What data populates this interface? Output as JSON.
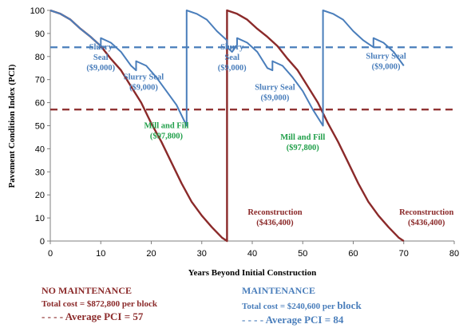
{
  "chart_data": {
    "type": "line",
    "xlabel": "Years Beyond Initial Construction",
    "ylabel": "Pavement Condition Index (PCI)",
    "xlim": [
      0,
      80
    ],
    "ylim": [
      0,
      100
    ],
    "x_ticks": [
      0,
      10,
      20,
      30,
      40,
      50,
      60,
      70,
      80
    ],
    "y_ticks": [
      0,
      10,
      20,
      30,
      40,
      50,
      60,
      70,
      80,
      90,
      100
    ],
    "grid": false,
    "series": [
      {
        "name": "NO MAINTENANCE",
        "color": "#8b2a2a",
        "points": [
          [
            0,
            100
          ],
          [
            2,
            98.5
          ],
          [
            4,
            96
          ],
          [
            6,
            92
          ],
          [
            8,
            88.5
          ],
          [
            10,
            84.5
          ],
          [
            12,
            79
          ],
          [
            14,
            74
          ],
          [
            16,
            67
          ],
          [
            18,
            60
          ],
          [
            20,
            51
          ],
          [
            22,
            43
          ],
          [
            24,
            34
          ],
          [
            26,
            25
          ],
          [
            28,
            17
          ],
          [
            30,
            11
          ],
          [
            32,
            6
          ],
          [
            34,
            1.5
          ],
          [
            35,
            0
          ],
          [
            35,
            100
          ],
          [
            37,
            98.5
          ],
          [
            39,
            96
          ],
          [
            41,
            92
          ],
          [
            43,
            88.5
          ],
          [
            45,
            84.5
          ],
          [
            47,
            79
          ],
          [
            49,
            74
          ],
          [
            51,
            67
          ],
          [
            53,
            60
          ],
          [
            55,
            51
          ],
          [
            57,
            43
          ],
          [
            59,
            34
          ],
          [
            61,
            25
          ],
          [
            63,
            17
          ],
          [
            65,
            11
          ],
          [
            67,
            6
          ],
          [
            69,
            1.5
          ],
          [
            70,
            0
          ]
        ]
      },
      {
        "name": "MAINTENANCE",
        "color": "#4a7ebb",
        "points": [
          [
            0,
            100
          ],
          [
            2,
            98.5
          ],
          [
            4,
            96
          ],
          [
            6,
            92
          ],
          [
            8,
            88.5
          ],
          [
            10,
            84.5
          ],
          [
            10,
            88
          ],
          [
            12,
            86
          ],
          [
            14,
            82
          ],
          [
            16,
            76
          ],
          [
            17,
            74
          ],
          [
            17,
            78
          ],
          [
            19,
            76
          ],
          [
            21,
            71
          ],
          [
            23,
            65
          ],
          [
            25,
            59
          ],
          [
            27,
            50
          ],
          [
            27,
            100
          ],
          [
            29,
            98.5
          ],
          [
            31,
            96
          ],
          [
            33,
            91
          ],
          [
            35,
            87
          ],
          [
            35,
            84
          ],
          [
            36,
            82
          ],
          [
            37,
            85
          ],
          [
            37,
            88
          ],
          [
            39,
            86
          ],
          [
            41,
            82
          ],
          [
            43,
            75
          ],
          [
            44,
            74
          ],
          [
            44,
            78
          ],
          [
            46,
            76
          ],
          [
            48,
            71
          ],
          [
            50,
            65
          ],
          [
            52,
            57
          ],
          [
            54,
            50
          ],
          [
            54,
            100
          ],
          [
            56,
            98.5
          ],
          [
            58,
            96
          ],
          [
            60,
            91
          ],
          [
            62,
            87
          ],
          [
            64,
            84
          ],
          [
            64,
            88
          ],
          [
            66,
            86
          ],
          [
            68,
            82
          ],
          [
            70,
            76
          ]
        ]
      }
    ],
    "reference_lines": [
      {
        "label": "Average PCI = 57",
        "value": 57,
        "color": "#8b2a2a"
      },
      {
        "label": "Average PCI = 84",
        "value": 84,
        "color": "#4a7ebb"
      }
    ],
    "annotations": [
      {
        "lines": [
          "Slurry",
          "Seal",
          "($9,000)"
        ],
        "x": 10,
        "y": 83,
        "color": "#4a7ebb"
      },
      {
        "lines": [
          "Slurry Seal",
          "($9,000)"
        ],
        "x": 18.5,
        "y": 70,
        "color": "#4a7ebb"
      },
      {
        "lines": [
          "Mill and Fill",
          "($97,800)"
        ],
        "x": 23,
        "y": 49,
        "color": "#22a04b"
      },
      {
        "lines": [
          "Slurry",
          "Seal",
          "($9,000)"
        ],
        "x": 36,
        "y": 83,
        "color": "#4a7ebb"
      },
      {
        "lines": [
          "Slurry Seal",
          "($9,000)"
        ],
        "x": 44.5,
        "y": 65.5,
        "color": "#4a7ebb"
      },
      {
        "lines": [
          "Mill and Fill",
          "($97,800)"
        ],
        "x": 50,
        "y": 44,
        "color": "#22a04b"
      },
      {
        "lines": [
          "Slurry Seal",
          "($9,000)"
        ],
        "x": 66.5,
        "y": 79,
        "color": "#4a7ebb"
      },
      {
        "lines": [
          "Reconstruction",
          "($436,400)"
        ],
        "x": 44.5,
        "y": 11.5,
        "color": "#8b2a2a"
      },
      {
        "lines": [
          "Reconstruction",
          "($436,400)"
        ],
        "x": 74.5,
        "y": 11.5,
        "color": "#8b2a2a"
      }
    ]
  },
  "legend": {
    "no_maintenance": {
      "title": "NO MAINTENANCE",
      "cost": "Total cost = $872,800 per block",
      "pci": "- - - - Average PCI = 57",
      "color": "#8b2a2a"
    },
    "maintenance": {
      "title": "MAINTENANCE",
      "cost_prefix": "Total cost = $240,600 per ",
      "cost_suffix": "block",
      "pci": "- - - - Average PCI = 84",
      "color": "#4a7ebb"
    }
  }
}
